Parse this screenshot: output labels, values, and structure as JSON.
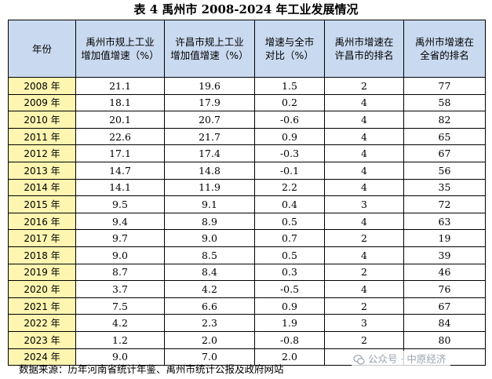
{
  "title": "表 4 禹州市 2008-2024 年工业发展情况",
  "headers": [
    "年份",
    "禹州市规上工业\n增加值增速（%）",
    "许昌市规上工业\n增加值增速（%）",
    "增速与全市\n对比（%）",
    "禹州市增速在\n许昌市的排名",
    "禹州市增速在\n全省的排名"
  ],
  "rows": [
    [
      "2008 年",
      "21.1",
      "19.6",
      "1.5",
      "2",
      "77"
    ],
    [
      "2009 年",
      "18.1",
      "17.9",
      "0.2",
      "4",
      "58"
    ],
    [
      "2010 年",
      "20.1",
      "20.7",
      "-0.6",
      "4",
      "82"
    ],
    [
      "2011 年",
      "22.6",
      "21.7",
      "0.9",
      "4",
      "65"
    ],
    [
      "2012 年",
      "17.1",
      "17.4",
      "-0.3",
      "4",
      "67"
    ],
    [
      "2013 年",
      "14.7",
      "14.8",
      "-0.1",
      "4",
      "56"
    ],
    [
      "2014 年",
      "14.1",
      "11.9",
      "2.2",
      "4",
      "35"
    ],
    [
      "2015 年",
      "9.5",
      "9.1",
      "0.4",
      "3",
      "72"
    ],
    [
      "2016 年",
      "9.4",
      "8.9",
      "0.5",
      "4",
      "63"
    ],
    [
      "2017 年",
      "9.7",
      "9.0",
      "0.7",
      "2",
      "19"
    ],
    [
      "2018 年",
      "9.0",
      "8.5",
      "0.5",
      "4",
      "39"
    ],
    [
      "2019 年",
      "8.7",
      "8.4",
      "0.3",
      "2",
      "46"
    ],
    [
      "2020 年",
      "3.7",
      "4.2",
      "-0.5",
      "4",
      "76"
    ],
    [
      "2021 年",
      "7.5",
      "6.6",
      "0.9",
      "2",
      "67"
    ],
    [
      "2022 年",
      "4.2",
      "2.3",
      "1.9",
      "3",
      "84"
    ],
    [
      "2023 年",
      "1.2",
      "2.0",
      "-0.8",
      "2",
      "80"
    ],
    [
      "2024 年",
      "9.0",
      "7.0",
      "2.0",
      "",
      ""
    ]
  ],
  "source": "数据来源：历年河南省统计年鉴、禹州市统计公报及政府网站",
  "watermark": "公众号 · 中原经济",
  "colors": {
    "header_bg": "#c9d9f0",
    "year_bg": "#fdf5b0"
  }
}
